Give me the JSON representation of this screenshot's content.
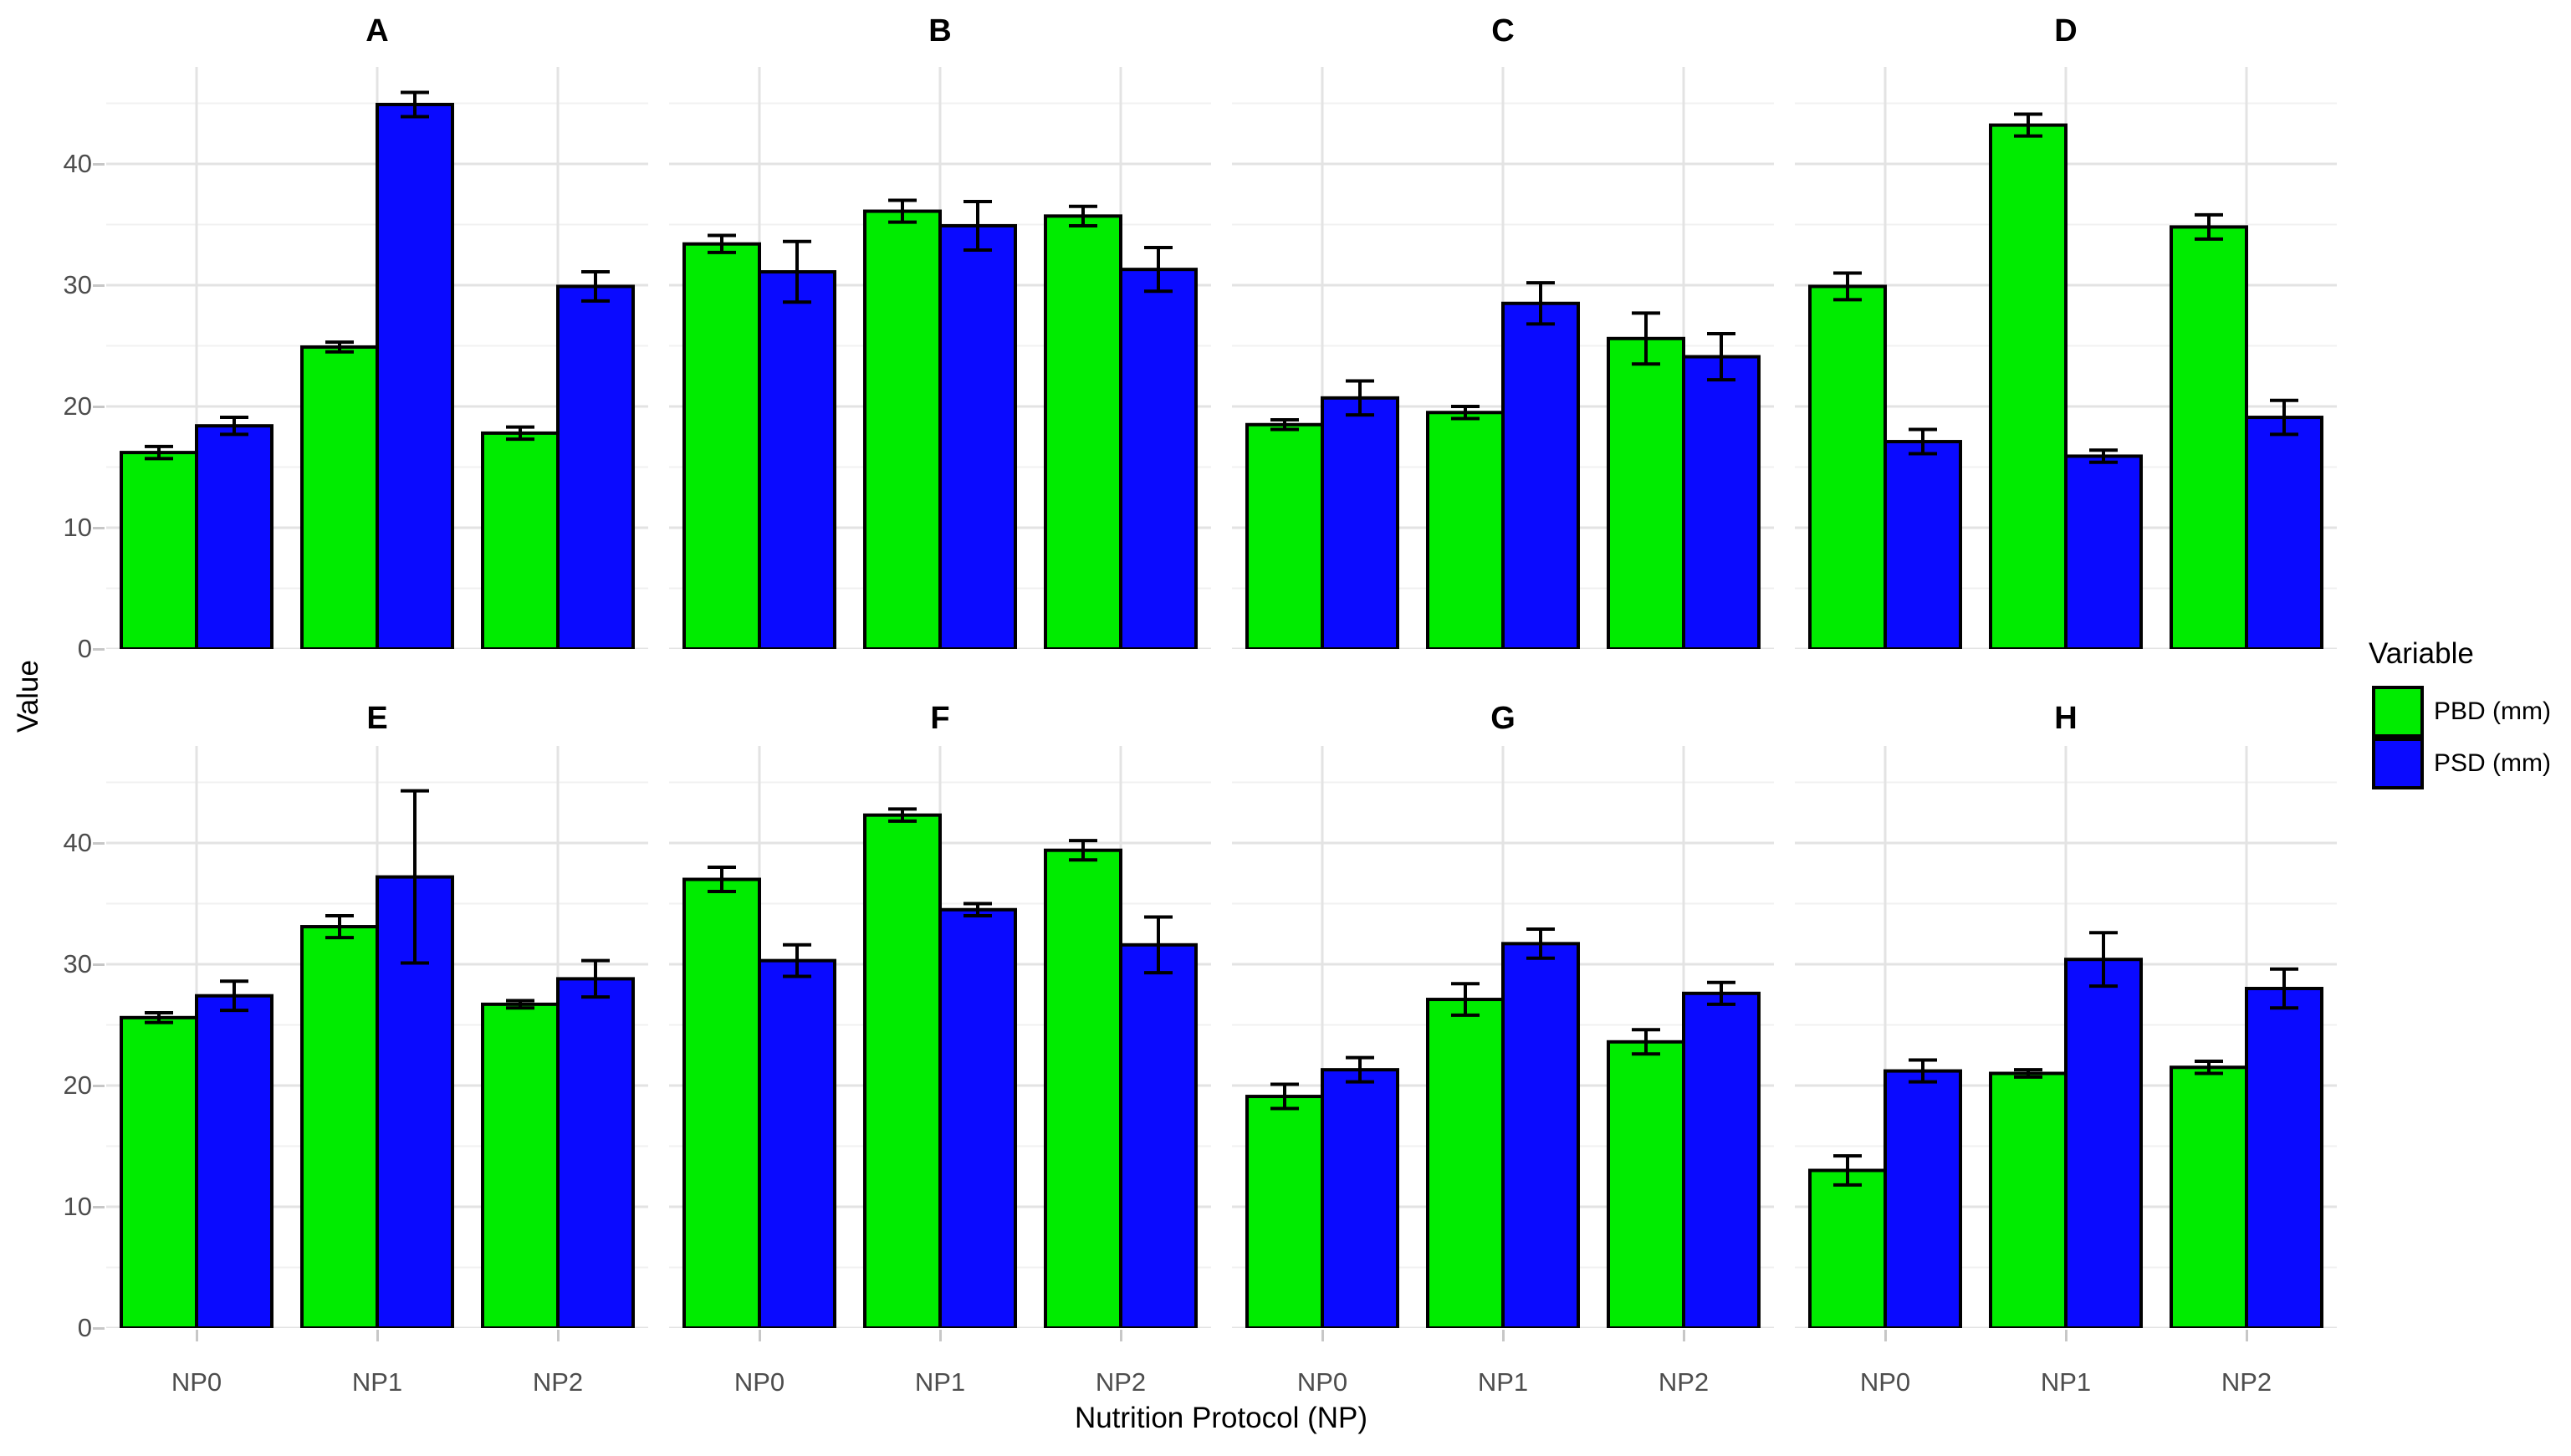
{
  "figure": {
    "y_axis_title": "Value",
    "x_axis_title": "Nutrition Protocol (NP)",
    "y_tick_labels": [
      "0",
      "10",
      "20",
      "30",
      "40"
    ],
    "x_tick_labels": [
      "NP0",
      "NP1",
      "NP2"
    ]
  },
  "legend": {
    "title": "Variable",
    "items": [
      {
        "label": "PBD (mm)",
        "color": "#00EC00"
      },
      {
        "label": "PSD (mm)",
        "color": "#0A0AFF"
      }
    ]
  },
  "colors": {
    "bar_green": "#00EC00",
    "bar_blue": "#0A0AFF",
    "bar_outline": "#000000",
    "grid_major": "#e3e3e3",
    "grid_minor": "#f1f1f1",
    "tick_text": "#4d4d4d",
    "axis_tick": "#c7c7c7",
    "background": "#ffffff"
  },
  "chart_data": {
    "type": "bar",
    "title": "",
    "xlabel": "Nutrition Protocol (NP)",
    "ylabel": "Value",
    "categories": [
      "NP0",
      "NP1",
      "NP2"
    ],
    "y_ticks": [
      0,
      10,
      20,
      30,
      40
    ],
    "ylim": [
      0,
      48
    ],
    "grid": true,
    "legend_position": "right",
    "legend_title": "Variable",
    "series_names": [
      "PBD (mm)",
      "PSD (mm)"
    ],
    "facets": [
      {
        "label": "A",
        "series": [
          {
            "name": "PBD (mm)",
            "values": [
              16.2,
              24.9,
              17.8
            ],
            "errors": [
              0.5,
              0.4,
              0.5
            ]
          },
          {
            "name": "PSD (mm)",
            "values": [
              18.4,
              44.9,
              29.9
            ],
            "errors": [
              0.7,
              1.0,
              1.2
            ]
          }
        ]
      },
      {
        "label": "B",
        "series": [
          {
            "name": "PBD (mm)",
            "values": [
              33.4,
              36.1,
              35.7
            ],
            "errors": [
              0.7,
              0.9,
              0.8
            ]
          },
          {
            "name": "PSD (mm)",
            "values": [
              31.1,
              34.9,
              31.3
            ],
            "errors": [
              2.5,
              2.0,
              1.8
            ]
          }
        ]
      },
      {
        "label": "C",
        "series": [
          {
            "name": "PBD (mm)",
            "values": [
              18.5,
              19.5,
              25.6
            ],
            "errors": [
              0.4,
              0.5,
              2.1
            ]
          },
          {
            "name": "PSD (mm)",
            "values": [
              20.7,
              28.5,
              24.1
            ],
            "errors": [
              1.4,
              1.7,
              1.9
            ]
          }
        ]
      },
      {
        "label": "D",
        "series": [
          {
            "name": "PBD (mm)",
            "values": [
              29.9,
              43.2,
              34.8
            ],
            "errors": [
              1.1,
              0.9,
              1.0
            ]
          },
          {
            "name": "PSD (mm)",
            "values": [
              17.1,
              15.9,
              19.1
            ],
            "errors": [
              1.0,
              0.5,
              1.4
            ]
          }
        ]
      },
      {
        "label": "E",
        "series": [
          {
            "name": "PBD (mm)",
            "values": [
              25.6,
              33.1,
              26.7
            ],
            "errors": [
              0.4,
              0.9,
              0.3
            ]
          },
          {
            "name": "PSD (mm)",
            "values": [
              27.4,
              37.2,
              28.8
            ],
            "errors": [
              1.2,
              7.1,
              1.5
            ]
          }
        ]
      },
      {
        "label": "F",
        "series": [
          {
            "name": "PBD (mm)",
            "values": [
              37.0,
              42.3,
              39.4
            ],
            "errors": [
              1.0,
              0.5,
              0.8
            ]
          },
          {
            "name": "PSD (mm)",
            "values": [
              30.3,
              34.5,
              31.6
            ],
            "errors": [
              1.3,
              0.5,
              2.3
            ]
          }
        ]
      },
      {
        "label": "G",
        "series": [
          {
            "name": "PBD (mm)",
            "values": [
              19.1,
              27.1,
              23.6
            ],
            "errors": [
              1.0,
              1.3,
              1.0
            ]
          },
          {
            "name": "PSD (mm)",
            "values": [
              21.3,
              31.7,
              27.6
            ],
            "errors": [
              1.0,
              1.2,
              0.9
            ]
          }
        ]
      },
      {
        "label": "H",
        "series": [
          {
            "name": "PBD (mm)",
            "values": [
              13.0,
              21.0,
              21.5
            ],
            "errors": [
              1.2,
              0.3,
              0.5
            ]
          },
          {
            "name": "PSD (mm)",
            "values": [
              21.2,
              30.4,
              28.0
            ],
            "errors": [
              0.9,
              2.2,
              1.6
            ]
          }
        ]
      }
    ]
  }
}
